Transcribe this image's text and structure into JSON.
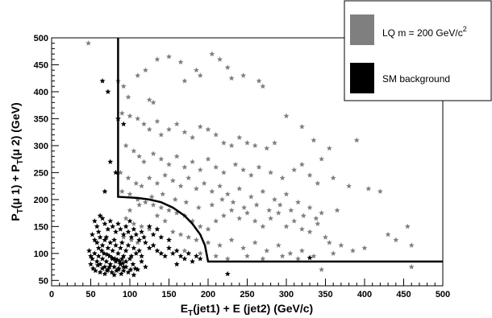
{
  "chart_data": {
    "type": "scatter",
    "xlim": [
      0,
      500
    ],
    "ylim": [
      40,
      500
    ],
    "x_ticks": [
      0,
      50,
      100,
      150,
      200,
      250,
      300,
      350,
      400,
      450,
      500
    ],
    "y_ticks": [
      50,
      100,
      150,
      200,
      250,
      300,
      350,
      400,
      450,
      500
    ],
    "xlabel": "E_T(jet1) + E (jet2) (GeV/c)",
    "ylabel": "P_T(μ 1) + P_T(μ 2) (GeV)",
    "legend": {
      "placement": "top-right",
      "entries": [
        {
          "label": "LQ m = 200 GeV/c",
          "sup": "2",
          "color": "#7f7f7f"
        },
        {
          "label": "SM background",
          "color": "#000000"
        }
      ]
    },
    "series": [
      {
        "name": "LQ m = 200 GeV/c²",
        "color": "#7f7f7f",
        "points": [
          [
            47,
            490
          ],
          [
            85,
            420
          ],
          [
            92,
            410
          ],
          [
            98,
            390
          ],
          [
            110,
            430
          ],
          [
            120,
            440
          ],
          [
            125,
            385
          ],
          [
            130,
            380
          ],
          [
            135,
            460
          ],
          [
            150,
            465
          ],
          [
            165,
            455
          ],
          [
            170,
            420
          ],
          [
            185,
            440
          ],
          [
            190,
            430
          ],
          [
            205,
            470
          ],
          [
            215,
            460
          ],
          [
            225,
            445
          ],
          [
            230,
            425
          ],
          [
            245,
            430
          ],
          [
            265,
            420
          ],
          [
            270,
            410
          ],
          [
            90,
            360
          ],
          [
            100,
            355
          ],
          [
            110,
            350
          ],
          [
            118,
            340
          ],
          [
            125,
            330
          ],
          [
            135,
            345
          ],
          [
            140,
            320
          ],
          [
            150,
            330
          ],
          [
            160,
            340
          ],
          [
            170,
            325
          ],
          [
            180,
            315
          ],
          [
            190,
            335
          ],
          [
            200,
            330
          ],
          [
            210,
            320
          ],
          [
            220,
            305
          ],
          [
            230,
            300
          ],
          [
            240,
            315
          ],
          [
            250,
            305
          ],
          [
            260,
            300
          ],
          [
            275,
            295
          ],
          [
            285,
            305
          ],
          [
            300,
            355
          ],
          [
            320,
            335
          ],
          [
            335,
            310
          ],
          [
            355,
            295
          ],
          [
            390,
            310
          ],
          [
            95,
            300
          ],
          [
            105,
            290
          ],
          [
            112,
            280
          ],
          [
            118,
            270
          ],
          [
            130,
            285
          ],
          [
            140,
            275
          ],
          [
            150,
            265
          ],
          [
            160,
            280
          ],
          [
            170,
            260
          ],
          [
            180,
            270
          ],
          [
            190,
            255
          ],
          [
            200,
            275
          ],
          [
            210,
            260
          ],
          [
            220,
            250
          ],
          [
            235,
            265
          ],
          [
            245,
            255
          ],
          [
            255,
            245
          ],
          [
            265,
            260
          ],
          [
            280,
            250
          ],
          [
            295,
            240
          ],
          [
            310,
            255
          ],
          [
            320,
            265
          ],
          [
            330,
            245
          ],
          [
            340,
            230
          ],
          [
            345,
            275
          ],
          [
            360,
            240
          ],
          [
            380,
            225
          ],
          [
            405,
            220
          ],
          [
            420,
            215
          ],
          [
            88,
            250
          ],
          [
            98,
            240
          ],
          [
            108,
            230
          ],
          [
            115,
            225
          ],
          [
            125,
            240
          ],
          [
            135,
            230
          ],
          [
            145,
            245
          ],
          [
            155,
            235
          ],
          [
            165,
            225
          ],
          [
            175,
            240
          ],
          [
            185,
            220
          ],
          [
            195,
            230
          ],
          [
            205,
            215
          ],
          [
            215,
            225
          ],
          [
            225,
            210
          ],
          [
            240,
            220
          ],
          [
            255,
            205
          ],
          [
            270,
            215
          ],
          [
            285,
            200
          ],
          [
            300,
            210
          ],
          [
            315,
            195
          ],
          [
            330,
            185
          ],
          [
            345,
            175
          ],
          [
            365,
            180
          ],
          [
            90,
            215
          ],
          [
            100,
            210
          ],
          [
            110,
            200
          ],
          [
            120,
            195
          ],
          [
            130,
            190
          ],
          [
            140,
            185
          ],
          [
            150,
            180
          ],
          [
            160,
            175
          ],
          [
            170,
            170
          ],
          [
            180,
            160
          ],
          [
            190,
            150
          ],
          [
            200,
            145
          ],
          [
            210,
            160
          ],
          [
            220,
            170
          ],
          [
            230,
            180
          ],
          [
            240,
            165
          ],
          [
            250,
            175
          ],
          [
            260,
            160
          ],
          [
            270,
            150
          ],
          [
            280,
            165
          ],
          [
            290,
            175
          ],
          [
            300,
            150
          ],
          [
            310,
            160
          ],
          [
            320,
            145
          ],
          [
            330,
            140
          ],
          [
            340,
            155
          ],
          [
            350,
            130
          ],
          [
            355,
            120
          ],
          [
            370,
            115
          ],
          [
            385,
            105
          ],
          [
            400,
            110
          ],
          [
            430,
            135
          ],
          [
            440,
            125
          ],
          [
            455,
            150
          ],
          [
            460,
            115
          ],
          [
            95,
            165
          ],
          [
            105,
            155
          ],
          [
            115,
            150
          ],
          [
            125,
            145
          ],
          [
            135,
            170
          ],
          [
            145,
            160
          ],
          [
            155,
            140
          ],
          [
            165,
            135
          ],
          [
            175,
            130
          ],
          [
            185,
            125
          ],
          [
            200,
            120
          ],
          [
            215,
            115
          ],
          [
            230,
            125
          ],
          [
            245,
            110
          ],
          [
            260,
            120
          ],
          [
            275,
            105
          ],
          [
            290,
            115
          ],
          [
            305,
            100
          ],
          [
            320,
            105
          ],
          [
            335,
            95
          ],
          [
            345,
            70
          ],
          [
            460,
            75
          ],
          [
            360,
            100
          ],
          [
            92,
            130
          ],
          [
            102,
            125
          ],
          [
            110,
            120
          ],
          [
            130,
            115
          ],
          [
            150,
            110
          ],
          [
            170,
            105
          ],
          [
            190,
            100
          ],
          [
            210,
            95
          ],
          [
            225,
            90
          ],
          [
            250,
            95
          ],
          [
            270,
            90
          ],
          [
            295,
            95
          ],
          [
            315,
            90
          ],
          [
            100,
            180
          ],
          [
            112,
            190
          ],
          [
            128,
            205
          ],
          [
            142,
            210
          ],
          [
            158,
            200
          ],
          [
            172,
            195
          ],
          [
            188,
            185
          ],
          [
            205,
            190
          ],
          [
            218,
            200
          ],
          [
            232,
            195
          ],
          [
            246,
            185
          ],
          [
            262,
            190
          ],
          [
            278,
            180
          ],
          [
            292,
            190
          ],
          [
            306,
            180
          ],
          [
            322,
            170
          ],
          [
            338,
            165
          ]
        ]
      },
      {
        "name": "SM background",
        "color": "#000000",
        "points": [
          [
            55,
            160
          ],
          [
            58,
            150
          ],
          [
            62,
            170
          ],
          [
            65,
            165
          ],
          [
            68,
            155
          ],
          [
            72,
            145
          ],
          [
            75,
            160
          ],
          [
            78,
            150
          ],
          [
            82,
            140
          ],
          [
            85,
            155
          ],
          [
            88,
            145
          ],
          [
            92,
            135
          ],
          [
            95,
            150
          ],
          [
            98,
            140
          ],
          [
            102,
            130
          ],
          [
            105,
            145
          ],
          [
            108,
            135
          ],
          [
            112,
            125
          ],
          [
            115,
            140
          ],
          [
            118,
            130
          ],
          [
            52,
            135
          ],
          [
            55,
            125
          ],
          [
            58,
            120
          ],
          [
            62,
            130
          ],
          [
            65,
            115
          ],
          [
            68,
            125
          ],
          [
            72,
            110
          ],
          [
            75,
            120
          ],
          [
            78,
            105
          ],
          [
            82,
            115
          ],
          [
            85,
            100
          ],
          [
            88,
            110
          ],
          [
            92,
            95
          ],
          [
            95,
            105
          ],
          [
            98,
            115
          ],
          [
            102,
            95
          ],
          [
            105,
            110
          ],
          [
            108,
            100
          ],
          [
            112,
            105
          ],
          [
            115,
            95
          ],
          [
            48,
            105
          ],
          [
            50,
            95
          ],
          [
            52,
            90
          ],
          [
            55,
            100
          ],
          [
            58,
            85
          ],
          [
            60,
            95
          ],
          [
            62,
            80
          ],
          [
            65,
            90
          ],
          [
            68,
            75
          ],
          [
            70,
            85
          ],
          [
            72,
            70
          ],
          [
            75,
            80
          ],
          [
            78,
            90
          ],
          [
            80,
            75
          ],
          [
            82,
            85
          ],
          [
            85,
            70
          ],
          [
            88,
            80
          ],
          [
            90,
            90
          ],
          [
            92,
            75
          ],
          [
            95,
            85
          ],
          [
            50,
            80
          ],
          [
            53,
            72
          ],
          [
            56,
            68
          ],
          [
            59,
            78
          ],
          [
            62,
            65
          ],
          [
            65,
            72
          ],
          [
            68,
            62
          ],
          [
            71,
            68
          ],
          [
            74,
            75
          ],
          [
            77,
            65
          ],
          [
            80,
            60
          ],
          [
            83,
            68
          ],
          [
            86,
            72
          ],
          [
            89,
            62
          ],
          [
            92,
            68
          ],
          [
            95,
            75
          ],
          [
            98,
            65
          ],
          [
            101,
            70
          ],
          [
            104,
            80
          ],
          [
            107,
            72
          ],
          [
            60,
            110
          ],
          [
            64,
            105
          ],
          [
            67,
            100
          ],
          [
            71,
            98
          ],
          [
            74,
            95
          ],
          [
            77,
            92
          ],
          [
            81,
            90
          ],
          [
            84,
            88
          ],
          [
            87,
            85
          ],
          [
            91,
            82
          ],
          [
            120,
            120
          ],
          [
            125,
            110
          ],
          [
            130,
            115
          ],
          [
            135,
            105
          ],
          [
            140,
            100
          ],
          [
            145,
            95
          ],
          [
            150,
            110
          ],
          [
            155,
            100
          ],
          [
            160,
            105
          ],
          [
            165,
            95
          ],
          [
            170,
            90
          ],
          [
            175,
            100
          ],
          [
            180,
            85
          ],
          [
            185,
            95
          ],
          [
            190,
            90
          ],
          [
            130,
            135
          ],
          [
            140,
            130
          ],
          [
            150,
            125
          ],
          [
            125,
            150
          ],
          [
            135,
            145
          ],
          [
            65,
            420
          ],
          [
            72,
            400
          ],
          [
            85,
            350
          ],
          [
            92,
            340
          ],
          [
            75,
            270
          ],
          [
            82,
            250
          ],
          [
            68,
            215
          ],
          [
            225,
            62
          ],
          [
            330,
            92
          ],
          [
            160,
            80
          ],
          [
            110,
            70
          ],
          [
            115,
            85
          ],
          [
            120,
            75
          ],
          [
            100,
            90
          ],
          [
            105,
            60
          ],
          [
            60,
            140
          ],
          [
            70,
            130
          ],
          [
            80,
            125
          ],
          [
            90,
            120
          ],
          [
            100,
            160
          ]
        ]
      }
    ],
    "cut_boundary": [
      [
        85,
        500
      ],
      [
        85,
        205
      ],
      [
        110,
        203
      ],
      [
        125,
        200
      ],
      [
        140,
        195
      ],
      [
        155,
        185
      ],
      [
        170,
        170
      ],
      [
        180,
        155
      ],
      [
        190,
        135
      ],
      [
        196,
        115
      ],
      [
        200,
        85
      ],
      [
        500,
        85
      ]
    ]
  }
}
